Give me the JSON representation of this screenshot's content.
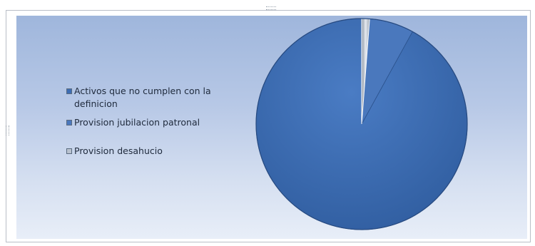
{
  "chart_data": {
    "type": "pie",
    "title": "",
    "legend_position": "left",
    "categories": [
      "Activos que no cumplen con la definicion",
      "Provision jubilacion patronal",
      "Provision desahucio"
    ],
    "values": [
      92.0,
      6.8,
      1.2
    ],
    "colors": [
      "#3d6db3",
      "#4a78bd",
      "#b9c2cf"
    ],
    "start_angle_deg": 0,
    "direction": "counterclockwise"
  }
}
